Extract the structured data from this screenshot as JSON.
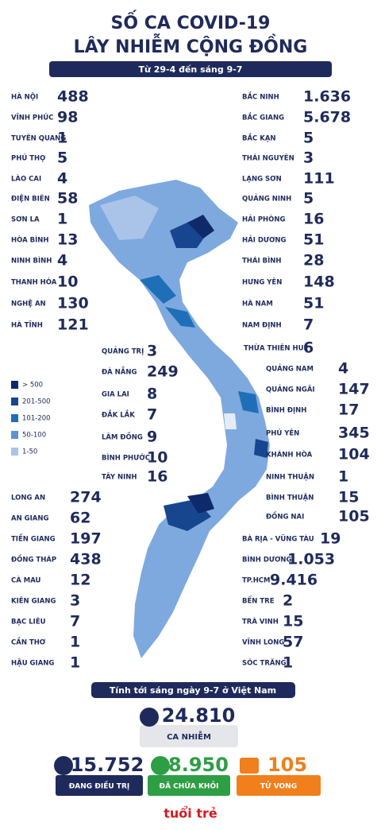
{
  "header": {
    "title_line1": "SỐ CA COVID-19",
    "title_line2": "LÂY NHIỄM CỘNG ĐỒNG",
    "subtitle": "Từ 29-4 đến sáng 9-7"
  },
  "provinces": [
    {
      "name": "HÀ NỘI",
      "value": "488"
    },
    {
      "name": "VĨNH PHÚC",
      "value": "98"
    },
    {
      "name": "TUYÊN QUANG",
      "value": "1"
    },
    {
      "name": "PHÚ THỌ",
      "value": "5"
    },
    {
      "name": "LÀO CAI",
      "value": "4"
    },
    {
      "name": "ĐIỆN BIÊN",
      "value": "58"
    },
    {
      "name": "SƠN LA",
      "value": "1"
    },
    {
      "name": "HÒA BÌNH",
      "value": "13"
    },
    {
      "name": "NINH BÌNH",
      "value": "4"
    },
    {
      "name": "THANH HÓA",
      "value": "10"
    },
    {
      "name": "NGHỆ AN",
      "value": "130"
    },
    {
      "name": "HÀ TĨNH",
      "value": "121"
    },
    {
      "name": "BẮC NINH",
      "value": "1.636"
    },
    {
      "name": "BẮC GIANG",
      "value": "5.678"
    },
    {
      "name": "BẮC KẠN",
      "value": "5"
    },
    {
      "name": "THÁI NGUYÊN",
      "value": "3"
    },
    {
      "name": "LẠNG SƠN",
      "value": "111"
    },
    {
      "name": "QUẢNG NINH",
      "value": "5"
    },
    {
      "name": "HẢI PHÒNG",
      "value": "16"
    },
    {
      "name": "HẢI DƯƠNG",
      "value": "51"
    },
    {
      "name": "THÁI BÌNH",
      "value": "28"
    },
    {
      "name": "HƯNG YÊN",
      "value": "148"
    },
    {
      "name": "HÀ NAM",
      "value": "51"
    },
    {
      "name": "NAM ĐỊNH",
      "value": "7"
    },
    {
      "name": "QUẢNG TRỊ",
      "value": "3"
    },
    {
      "name": "ĐÀ NẴNG",
      "value": "249"
    },
    {
      "name": "GIA LAI",
      "value": "8"
    },
    {
      "name": "ĐẮK LẮK",
      "value": "7"
    },
    {
      "name": "LÂM ĐỒNG",
      "value": "9"
    },
    {
      "name": "BÌNH PHƯỚC",
      "value": "10"
    },
    {
      "name": "TÂY NINH",
      "value": "16"
    },
    {
      "name": "THỪA THIÊN HUẾ",
      "value": "6"
    },
    {
      "name": "QUẢNG NAM",
      "value": "4"
    },
    {
      "name": "QUẢNG NGÃI",
      "value": "147"
    },
    {
      "name": "BÌNH ĐỊNH",
      "value": "17"
    },
    {
      "name": "PHÚ YÊN",
      "value": "345"
    },
    {
      "name": "KHÁNH HÒA",
      "value": "104"
    },
    {
      "name": "NINH THUẬN",
      "value": "1"
    },
    {
      "name": "BÌNH THUẬN",
      "value": "15"
    },
    {
      "name": "ĐỒNG NAI",
      "value": "105"
    },
    {
      "name": "LONG AN",
      "value": "274"
    },
    {
      "name": "AN GIANG",
      "value": "62"
    },
    {
      "name": "TIỀN GIANG",
      "value": "197"
    },
    {
      "name": "ĐỒNG THÁP",
      "value": "438"
    },
    {
      "name": "CÀ MAU",
      "value": "12"
    },
    {
      "name": "KIÊN GIANG",
      "value": "3"
    },
    {
      "name": "BẠC LIÊU",
      "value": "7"
    },
    {
      "name": "CẦN THƠ",
      "value": "1"
    },
    {
      "name": "HẬU GIANG",
      "value": "1"
    },
    {
      "name": "BÀ RỊA - VŨNG TÀU",
      "value": "19"
    },
    {
      "name": "BÌNH DƯƠNG",
      "value": "1.053"
    },
    {
      "name": "TP.HCM",
      "value": "9.416"
    },
    {
      "name": "BẾN TRE",
      "value": "2"
    },
    {
      "name": "TRÀ VINH",
      "value": "15"
    },
    {
      "name": "VĨNH LONG",
      "value": "57"
    },
    {
      "name": "SÓC TRĂNG",
      "value": "1"
    }
  ],
  "legend": [
    {
      "label": "> 500",
      "color": "#0f2a6b"
    },
    {
      "label": "201-500",
      "color": "#17468f"
    },
    {
      "label": "101-200",
      "color": "#1f6fb8"
    },
    {
      "label": "50-100",
      "color": "#5b93d3"
    },
    {
      "label": "1-50",
      "color": "#a9c4e8"
    }
  ],
  "summary": {
    "banner": "Tính tới sáng ngày 9-7 ở Việt Nam",
    "total": "24.810",
    "total_label": "CA NHIỄM",
    "treating": "15.752",
    "treating_label": "ĐANG ĐIỀU TRỊ",
    "recovered": "8.950",
    "recovered_label": "ĐÃ CHỮA KHỎI",
    "deaths": "105",
    "deaths_label": "TỬ VONG"
  },
  "logo": "tuổi trẻ"
}
